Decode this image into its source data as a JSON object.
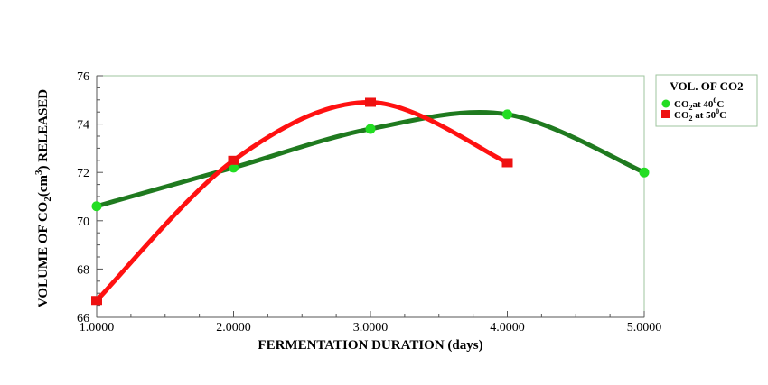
{
  "chart_data": {
    "type": "line",
    "xlabel": "FERMENTATION DURATION (days)",
    "ylabel": {
      "prefix": "VOLUME OF CO",
      "sub": "2",
      "mid": "(cm",
      "sup": "3",
      "suffix": ") RELEASED"
    },
    "xlim": [
      1,
      5
    ],
    "ylim": [
      66,
      76
    ],
    "x_ticks": [
      1,
      2,
      3,
      4,
      5
    ],
    "x_tick_labels": [
      "1.0000",
      "2.0000",
      "3.0000",
      "4.0000",
      "5.0000"
    ],
    "y_ticks": [
      66,
      68,
      70,
      72,
      74,
      76
    ],
    "y_tick_labels": [
      "66",
      "68",
      "70",
      "72",
      "74",
      "76"
    ],
    "grid": false,
    "legend": {
      "title": "VOL. OF CO2",
      "placement": "right"
    },
    "series": [
      {
        "name": "CO2at 40⁰C",
        "label_parts": {
          "a": "CO",
          "sub": "2",
          "b": "at 40",
          "sup": "0",
          "c": "C"
        },
        "color": "#1f7a1f",
        "marker_color": "#22dd22",
        "marker": "circle",
        "x": [
          1,
          2,
          3,
          4,
          5
        ],
        "y": [
          70.6,
          72.2,
          73.8,
          74.4,
          72.0
        ]
      },
      {
        "name": "CO2 at 50⁰C",
        "label_parts": {
          "a": "CO",
          "sub": "2",
          "b": " at 50",
          "sup": "0",
          "c": "C"
        },
        "color": "#ff1111",
        "marker_color": "#ee1111",
        "marker": "square",
        "x": [
          1,
          2,
          3,
          4
        ],
        "y": [
          66.7,
          72.5,
          74.9,
          72.4
        ]
      }
    ]
  }
}
